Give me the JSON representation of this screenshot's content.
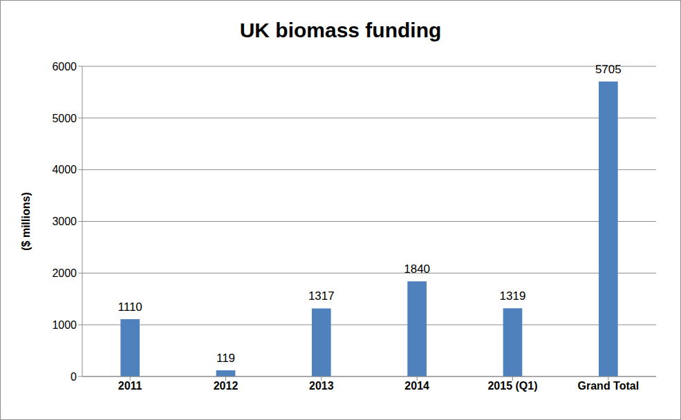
{
  "chart_data": {
    "type": "bar",
    "title": "UK biomass funding",
    "y_label": "($ millions)",
    "categories": [
      "2011",
      "2012",
      "2013",
      "2014",
      "2015 (Q1)",
      "Grand Total"
    ],
    "values": [
      1110,
      119,
      1317,
      1840,
      1319,
      5705
    ],
    "color": "#4f81bd",
    "ylim": [
      0,
      6000
    ],
    "yticks": [
      0,
      1000,
      2000,
      3000,
      4000,
      5000,
      6000
    ],
    "grid": true,
    "data_labels": true
  }
}
